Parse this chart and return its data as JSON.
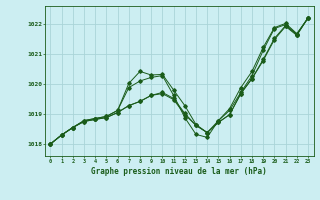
{
  "title": "Graphe pression niveau de la mer (hPa)",
  "bg_color": "#cceef2",
  "grid_color": "#aad4d8",
  "line_color": "#1a5c1a",
  "xlim": [
    -0.5,
    23.5
  ],
  "ylim": [
    1017.6,
    1022.6
  ],
  "yticks": [
    1018,
    1019,
    1020,
    1021,
    1022
  ],
  "xticks": [
    0,
    1,
    2,
    3,
    4,
    5,
    6,
    7,
    8,
    9,
    10,
    11,
    12,
    13,
    14,
    15,
    16,
    17,
    18,
    19,
    20,
    21,
    22,
    23
  ],
  "lines": [
    [
      1018.0,
      1018.3,
      1018.55,
      1018.75,
      1018.82,
      1018.88,
      1019.05,
      1019.28,
      1019.42,
      1019.62,
      1019.68,
      1019.48,
      1018.98,
      1018.62,
      1018.38,
      1018.72,
      1018.98,
      1019.68,
      1020.18,
      1020.78,
      1021.48,
      1021.92,
      1021.62,
      1022.2
    ],
    [
      1018.0,
      1018.3,
      1018.55,
      1018.75,
      1018.82,
      1018.88,
      1019.05,
      1019.28,
      1019.42,
      1019.62,
      1019.72,
      1019.52,
      1019.02,
      1018.62,
      1018.38,
      1018.72,
      1018.98,
      1019.68,
      1020.18,
      1020.82,
      1021.52,
      1021.95,
      1021.65,
      1022.2
    ],
    [
      1018.0,
      1018.3,
      1018.55,
      1018.78,
      1018.85,
      1018.92,
      1019.12,
      1020.02,
      1020.42,
      1020.3,
      1020.32,
      1019.8,
      1019.28,
      1018.65,
      1018.38,
      1018.78,
      1019.18,
      1019.88,
      1020.42,
      1021.22,
      1021.88,
      1022.02,
      1021.68,
      1022.2
    ],
    [
      1018.0,
      1018.3,
      1018.55,
      1018.78,
      1018.85,
      1018.92,
      1019.12,
      1019.88,
      1020.1,
      1020.22,
      1020.28,
      1019.62,
      1018.88,
      1018.32,
      1018.22,
      1018.78,
      1019.12,
      1019.72,
      1020.28,
      1021.12,
      1021.85,
      1021.98,
      1021.65,
      1022.2
    ]
  ]
}
